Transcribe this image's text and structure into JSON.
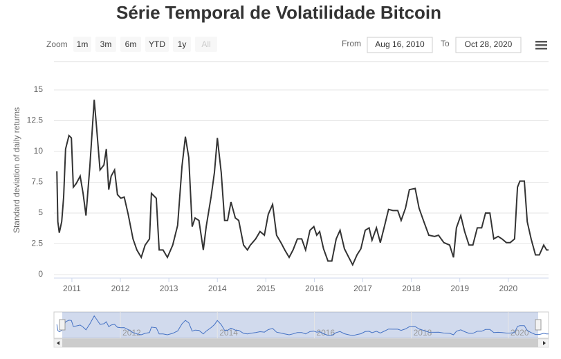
{
  "chart_data": {
    "type": "line",
    "title": "Série Temporal de Volatilidade Bitcoin",
    "y_label": "Standard deviation of daily returns",
    "range_selector": {
      "label": "Zoom",
      "buttons": [
        "1m",
        "3m",
        "6m",
        "YTD",
        "1y",
        "All"
      ],
      "disabled": "All"
    },
    "date_input": {
      "from_label": "From",
      "from": "Aug 16, 2010",
      "to_label": "To",
      "to": "Oct 28, 2020"
    },
    "color": "#333333",
    "navigator_color": "#4572c4",
    "x": [
      2010.69,
      2010.71,
      2010.74,
      2010.79,
      2010.83,
      2010.87,
      2010.94,
      2010.99,
      2011.03,
      2011.09,
      2011.17,
      2011.23,
      2011.29,
      2011.37,
      2011.46,
      2011.51,
      2011.58,
      2011.66,
      2011.71,
      2011.76,
      2011.81,
      2011.88,
      2011.94,
      2012.01,
      2012.08,
      2012.16,
      2012.26,
      2012.34,
      2012.43,
      2012.51,
      2012.6,
      2012.64,
      2012.74,
      2012.8,
      2012.88,
      2012.97,
      2013.08,
      2013.18,
      2013.27,
      2013.34,
      2013.41,
      2013.48,
      2013.54,
      2013.62,
      2013.71,
      2013.77,
      2013.87,
      2013.94,
      2014.0,
      2014.08,
      2014.15,
      2014.21,
      2014.28,
      2014.37,
      2014.44,
      2014.54,
      2014.62,
      2014.68,
      2014.79,
      2014.88,
      2014.97,
      2015.05,
      2015.14,
      2015.22,
      2015.31,
      2015.39,
      2015.48,
      2015.56,
      2015.65,
      2015.74,
      2015.82,
      2015.91,
      2015.99,
      2016.05,
      2016.11,
      2016.19,
      2016.28,
      2016.36,
      2016.45,
      2016.53,
      2016.62,
      2016.71,
      2016.79,
      2016.88,
      2016.96,
      2017.05,
      2017.13,
      2017.19,
      2017.28,
      2017.36,
      2017.45,
      2017.53,
      2017.62,
      2017.72,
      2017.79,
      2017.88,
      2017.96,
      2018.08,
      2018.16,
      2018.25,
      2018.36,
      2018.48,
      2018.56,
      2018.67,
      2018.79,
      2018.87,
      2018.93,
      2019.02,
      2019.1,
      2019.19,
      2019.27,
      2019.36,
      2019.45,
      2019.53,
      2019.62,
      2019.7,
      2019.79,
      2019.87,
      2019.96,
      2020.04,
      2020.13,
      2020.19,
      2020.24,
      2020.33,
      2020.39,
      2020.47,
      2020.56,
      2020.64,
      2020.73,
      2020.79,
      2020.83
    ],
    "values": [
      8.4,
      4.3,
      3.4,
      4.3,
      6.3,
      10.2,
      11.3,
      11.1,
      7.1,
      7.4,
      8.0,
      6.6,
      4.8,
      8.8,
      14.2,
      11.9,
      8.5,
      8.9,
      10.2,
      6.9,
      8.0,
      8.5,
      6.5,
      6.2,
      6.3,
      4.9,
      2.9,
      2.0,
      1.4,
      2.4,
      2.9,
      6.6,
      6.2,
      2.0,
      2.0,
      1.4,
      2.4,
      4.0,
      8.8,
      11.2,
      9.5,
      3.9,
      4.6,
      4.4,
      2.0,
      3.9,
      6.3,
      8.3,
      11.1,
      8.3,
      4.4,
      4.4,
      5.9,
      4.6,
      4.4,
      2.4,
      2.0,
      2.4,
      2.9,
      3.5,
      3.2,
      4.9,
      5.7,
      3.2,
      2.6,
      2.0,
      1.4,
      2.0,
      2.9,
      2.9,
      2.0,
      3.6,
      3.9,
      3.2,
      3.5,
      2.1,
      1.1,
      1.1,
      2.9,
      3.6,
      2.1,
      1.4,
      0.8,
      1.6,
      2.1,
      3.6,
      3.8,
      2.8,
      3.8,
      2.6,
      4.0,
      5.3,
      5.2,
      5.2,
      4.4,
      5.4,
      6.9,
      7.0,
      5.4,
      4.4,
      3.2,
      3.1,
      3.2,
      2.6,
      2.4,
      1.4,
      3.8,
      4.8,
      3.5,
      2.4,
      2.4,
      3.8,
      3.8,
      5.0,
      5.0,
      2.9,
      3.1,
      2.9,
      2.6,
      2.6,
      2.9,
      7.1,
      7.6,
      7.6,
      4.3,
      2.9,
      1.6,
      1.6,
      2.4,
      2.0,
      2.0
    ],
    "xlim": [
      2010.63,
      2020.83
    ],
    "xticks": [
      2011,
      2012,
      2013,
      2014,
      2015,
      2016,
      2017,
      2018,
      2019,
      2020
    ],
    "navigator_xticks": [
      2012,
      2014,
      2016,
      2018,
      2020
    ],
    "ylim": [
      0,
      15
    ],
    "yticks": [
      0,
      2.5,
      5,
      7.5,
      10,
      12.5,
      15
    ],
    "grid": true
  }
}
